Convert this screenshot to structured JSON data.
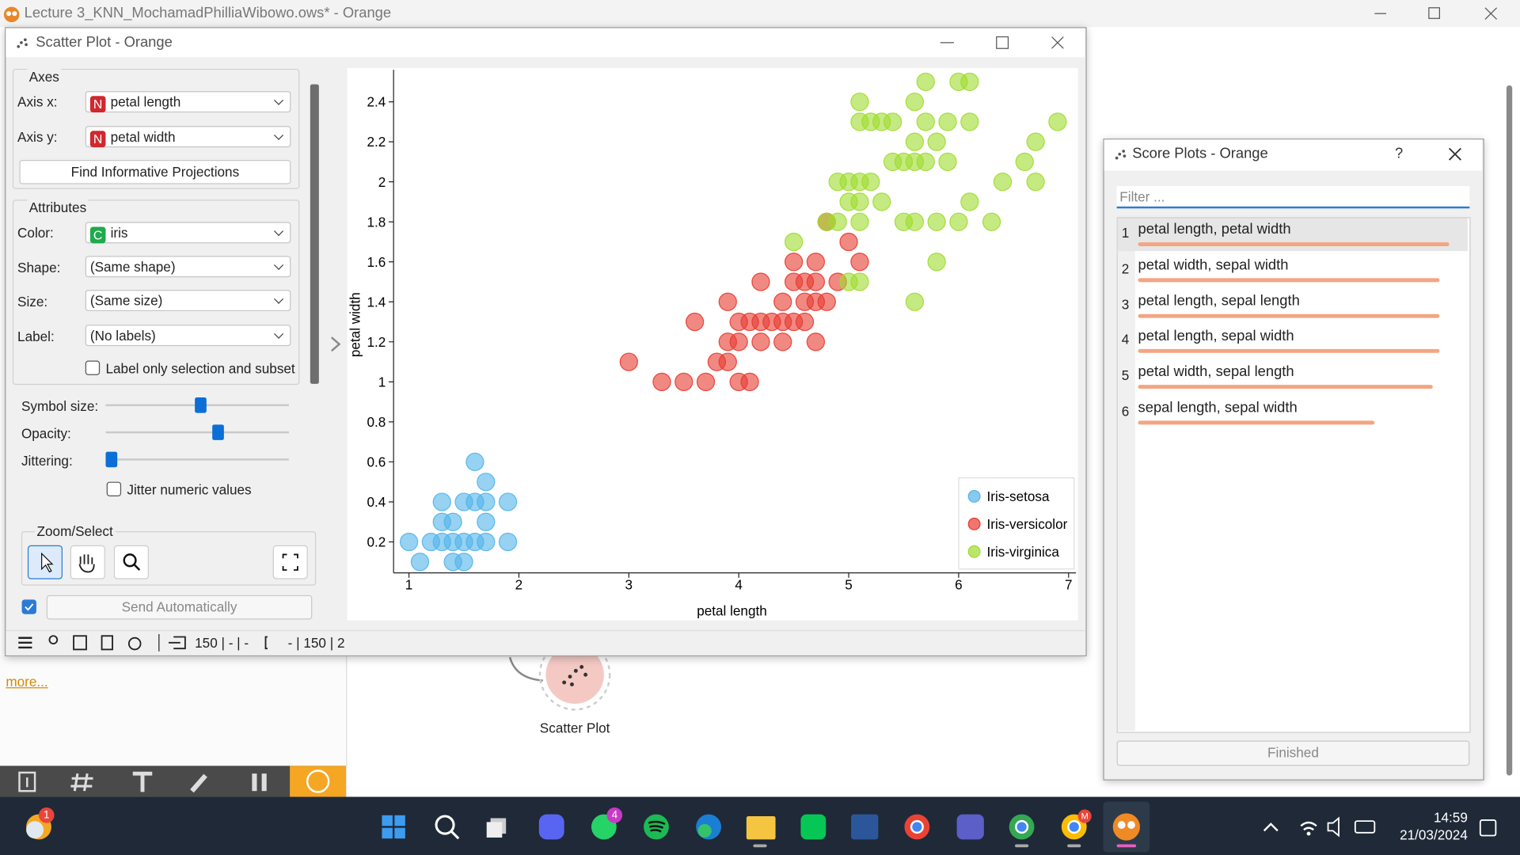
{
  "window": {
    "title": "Lecture 3_KNN_MochamadPhilliaWibowo.ows* - Orange"
  },
  "scatter_window": {
    "title": "Scatter Plot - Orange",
    "axes": {
      "heading": "Axes",
      "x_label": "Axis x:",
      "x_badge": "N",
      "x_value": "petal length",
      "y_label": "Axis y:",
      "y_badge": "N",
      "y_value": "petal width",
      "button": "Find Informative Projections"
    },
    "attributes": {
      "heading": "Attributes",
      "color_label": "Color:",
      "color_badge": "C",
      "color_value": "iris",
      "shape_label": "Shape:",
      "shape_value": "(Same shape)",
      "size_label": "Size:",
      "size_value": "(Same size)",
      "label_label": "Label:",
      "label_value": "(No labels)",
      "label_only": "Label only selection and subset",
      "symbol_size": "Symbol size:",
      "opacity": "Opacity:",
      "jittering": "Jittering:",
      "jitter_numeric": "Jitter numeric values"
    },
    "zoom": {
      "heading": "Zoom/Select"
    },
    "send": "Send Automatically",
    "status": {
      "input": "150 | - | -",
      "output": "- | 150 | 2"
    }
  },
  "chart_data": {
    "type": "scatter",
    "x_label": "petal length",
    "y_label": "petal width",
    "xlim": [
      0.86,
      7.05
    ],
    "ylim": [
      0.045,
      2.56
    ],
    "xticks": [
      1,
      2,
      3,
      4,
      5,
      6,
      7
    ],
    "yticks": [
      0.2,
      0.4,
      0.6,
      0.8,
      1,
      1.2,
      1.4,
      1.6,
      1.8,
      2,
      2.2,
      2.4
    ],
    "legend": "lower right",
    "series": [
      {
        "name": "Iris-setosa",
        "color": "#52b4ea",
        "x": [
          1.0,
          1.2,
          1.3,
          1.4,
          1.5,
          1.6,
          1.7,
          1.9,
          1.1,
          1.4,
          1.5,
          1.3,
          1.4,
          1.7,
          1.3,
          1.5,
          1.6,
          1.7,
          1.9,
          1.7,
          1.6
        ],
        "values": [
          0.2,
          0.2,
          0.2,
          0.2,
          0.2,
          0.2,
          0.2,
          0.2,
          0.1,
          0.1,
          0.1,
          0.3,
          0.3,
          0.3,
          0.4,
          0.4,
          0.4,
          0.4,
          0.4,
          0.5,
          0.6
        ]
      },
      {
        "name": "Iris-versicolor",
        "color": "#e83a30",
        "x": [
          3.0,
          3.8,
          3.9,
          3.3,
          3.5,
          3.7,
          4.0,
          4.1,
          3.9,
          4.0,
          4.2,
          4.4,
          4.7,
          3.6,
          4.0,
          4.1,
          4.2,
          4.3,
          4.4,
          4.5,
          4.6,
          3.9,
          4.4,
          4.6,
          4.7,
          4.8,
          4.2,
          4.5,
          4.6,
          4.7,
          4.9,
          4.5,
          4.7,
          5.1,
          5.0,
          4.8
        ],
        "values": [
          1.1,
          1.1,
          1.1,
          1.0,
          1.0,
          1.0,
          1.0,
          1.0,
          1.2,
          1.2,
          1.2,
          1.2,
          1.2,
          1.3,
          1.3,
          1.3,
          1.3,
          1.3,
          1.3,
          1.3,
          1.3,
          1.4,
          1.4,
          1.4,
          1.4,
          1.4,
          1.5,
          1.5,
          1.5,
          1.5,
          1.5,
          1.6,
          1.6,
          1.6,
          1.7,
          1.8
        ]
      },
      {
        "name": "Iris-virginica",
        "color": "#9edc2e",
        "x": [
          5.7,
          6.0,
          6.1,
          5.1,
          5.6,
          5.1,
          5.2,
          5.3,
          5.4,
          5.7,
          5.9,
          6.1,
          6.9,
          5.6,
          5.8,
          6.7,
          5.4,
          5.5,
          5.6,
          5.7,
          5.9,
          6.6,
          4.9,
          5.0,
          5.1,
          5.2,
          6.4,
          6.7,
          5.0,
          5.1,
          5.3,
          6.1,
          4.8,
          4.9,
          5.1,
          5.5,
          5.6,
          5.8,
          6.0,
          6.3,
          4.5,
          5.8,
          5.0,
          5.1,
          5.6
        ],
        "values": [
          2.5,
          2.5,
          2.5,
          2.4,
          2.4,
          2.3,
          2.3,
          2.3,
          2.3,
          2.3,
          2.3,
          2.3,
          2.3,
          2.2,
          2.2,
          2.2,
          2.1,
          2.1,
          2.1,
          2.1,
          2.1,
          2.1,
          2.0,
          2.0,
          2.0,
          2.0,
          2.0,
          2.0,
          1.9,
          1.9,
          1.9,
          1.9,
          1.8,
          1.8,
          1.8,
          1.8,
          1.8,
          1.8,
          1.8,
          1.8,
          1.7,
          1.6,
          1.5,
          1.5,
          1.4
        ]
      }
    ]
  },
  "score_window": {
    "title": "Score Plots - Orange",
    "help": "?",
    "filter_placeholder": "Filter ...",
    "status": "Finished",
    "items": [
      {
        "rank": 1,
        "label": "petal length, petal width",
        "score": 0.96
      },
      {
        "rank": 2,
        "label": "petal width, sepal width",
        "score": 0.93
      },
      {
        "rank": 3,
        "label": "petal length, sepal length",
        "score": 0.93
      },
      {
        "rank": 4,
        "label": "petal length, sepal width",
        "score": 0.93
      },
      {
        "rank": 5,
        "label": "petal width, sepal length",
        "score": 0.91
      },
      {
        "rank": 6,
        "label": "sepal length, sepal width",
        "score": 0.73
      }
    ]
  },
  "canvas": {
    "widget_label": "Scatter Plot",
    "more": "more..."
  },
  "taskbar": {
    "weather_badge": "1",
    "whatsapp_badge": "4",
    "chrome_badge": "M",
    "time": "14:59",
    "date": "21/03/2024"
  }
}
